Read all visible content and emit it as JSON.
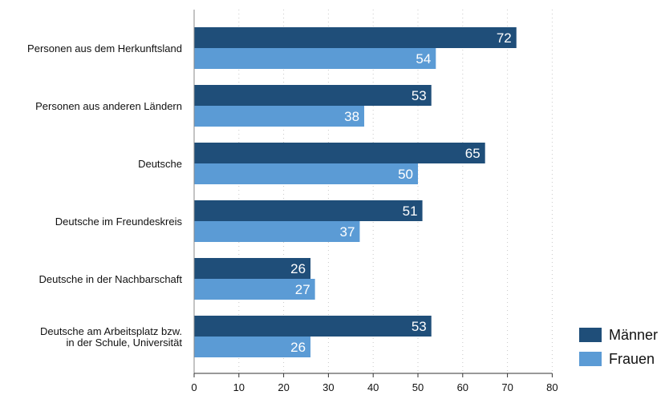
{
  "chart_data": {
    "type": "bar",
    "orientation": "horizontal",
    "categories": [
      [
        "Personen aus dem Herkunftsland"
      ],
      [
        "Personen aus anderen Ländern"
      ],
      [
        "Deutsche"
      ],
      [
        "Deutsche im Freundeskreis"
      ],
      [
        "Deutsche in der Nachbarschaft"
      ],
      [
        "Deutsche am Arbeitsplatz bzw.",
        "in der Schule, Universität"
      ]
    ],
    "series": [
      {
        "name": "Männer",
        "color": "#1f4e79",
        "values": [
          72,
          53,
          65,
          51,
          26,
          53
        ]
      },
      {
        "name": "Frauen",
        "color": "#5b9bd5",
        "values": [
          54,
          38,
          50,
          37,
          27,
          26
        ]
      }
    ],
    "xlim": [
      0,
      80
    ],
    "xticks": [
      "0",
      "10",
      "20",
      "30",
      "40",
      "50",
      "60",
      "70",
      "80"
    ],
    "grid": "vertical-dotted",
    "legend_position": "bottom-right",
    "data_labels": true
  }
}
